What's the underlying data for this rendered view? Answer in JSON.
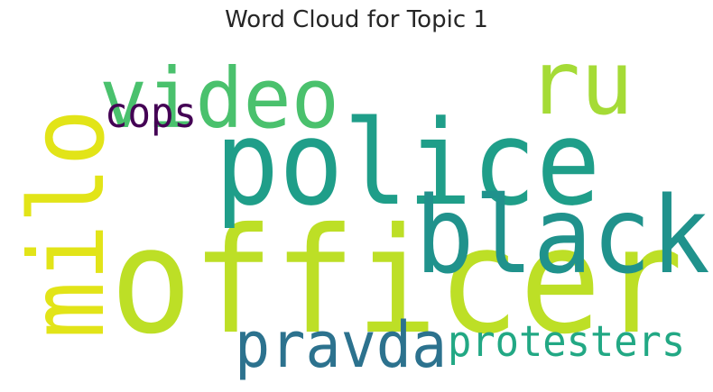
{
  "title": "Word Cloud for Topic 1",
  "words": [
    {
      "text": "officer",
      "color": "#bddf26"
    },
    {
      "text": "police",
      "color": "#1f9e89"
    },
    {
      "text": "black",
      "color": "#20928c"
    },
    {
      "text": "video",
      "color": "#4ac16d"
    },
    {
      "text": "ru",
      "color": "#a5db36"
    },
    {
      "text": "milo",
      "color": "#e2e418"
    },
    {
      "text": "pravda",
      "color": "#2c728e"
    },
    {
      "text": "protesters",
      "color": "#22a884"
    },
    {
      "text": "cops",
      "color": "#440154"
    }
  ],
  "background": "#ffffff",
  "title_color": "#262626"
}
